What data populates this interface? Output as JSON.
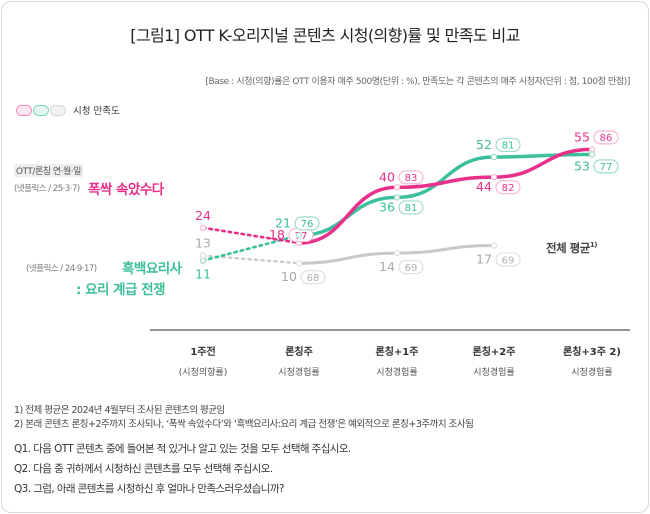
{
  "title": "[그림1]  OTT K-오리지널 콘텐츠 시청(의향)률 및 만족도 비교",
  "base_note": "[Base : 시청(의향)률은 OTT 이용자 매주 500명(단위 : %), 만족도는 각 콘텐츠의 매주 시청자(단위 : 점, 100점 만점)]",
  "legend_label": "시청 만족도",
  "left_labels": {
    "category": "OTT/론칭 연·월·일",
    "s1_meta": "(넷플릭스 / 25·3·7)",
    "s1_name": "폭싹 속았수다",
    "s2_meta": "(넷플릭스 / 24·9·17)",
    "s2_name_1": "흑백요리사",
    "s2_name_2": ": 요리 계급 전쟁",
    "avg_name": "전체 평균",
    "avg_sup": "1)"
  },
  "colors": {
    "pink": "#e8308a",
    "green": "#3cbf9a",
    "gray": "#c8c8c8",
    "axis": "#555555"
  },
  "chart_data": {
    "type": "line",
    "categories": [
      "1주전",
      "론칭주",
      "론칭+1주",
      "론칭+2주",
      "론칭+3주 2)"
    ],
    "category_sub": [
      "(시청의향률)",
      "시청경험률",
      "시청경험률",
      "시청경험률",
      "시청경험률"
    ],
    "series": [
      {
        "name": "폭싹 속았수다",
        "color": "#e8308a",
        "values": [
          24,
          18,
          40,
          44,
          55
        ],
        "satisfaction": [
          null,
          77,
          83,
          82,
          86
        ]
      },
      {
        "name": "흑백요리사 : 요리 계급 전쟁",
        "color": "#3cbf9a",
        "values": [
          11,
          21,
          36,
          52,
          53
        ],
        "satisfaction": [
          null,
          76,
          81,
          81,
          77
        ]
      },
      {
        "name": "전체 평균",
        "color": "#c8c8c8",
        "values": [
          13,
          10,
          14,
          17,
          null
        ],
        "satisfaction": [
          null,
          68,
          69,
          69,
          null
        ]
      }
    ]
  },
  "notes": [
    "1) 전체 평균은 2024년 4월부터 조사된 콘텐츠의 평균임",
    "2) 본래 콘텐츠 론칭+2주까지 조사되나, ‘폭싹 속았수다’와 ‘흑백요리사:요리 계급 전쟁’은 예외적으로 론칭+3주까지 조사됨"
  ],
  "questions": [
    "Q1. 다음 OTT 콘텐츠 중에 들어본 적 있거나 알고 있는 것을 모두 선택해 주십시오.",
    "Q2. 다음 중 귀하께서 시청하신 콘텐츠를 모두 선택해 주십시오.",
    "Q3. 그럼, 아래 콘텐츠를 시청하신 후 얼마나 만족스러우셨습니까?"
  ]
}
